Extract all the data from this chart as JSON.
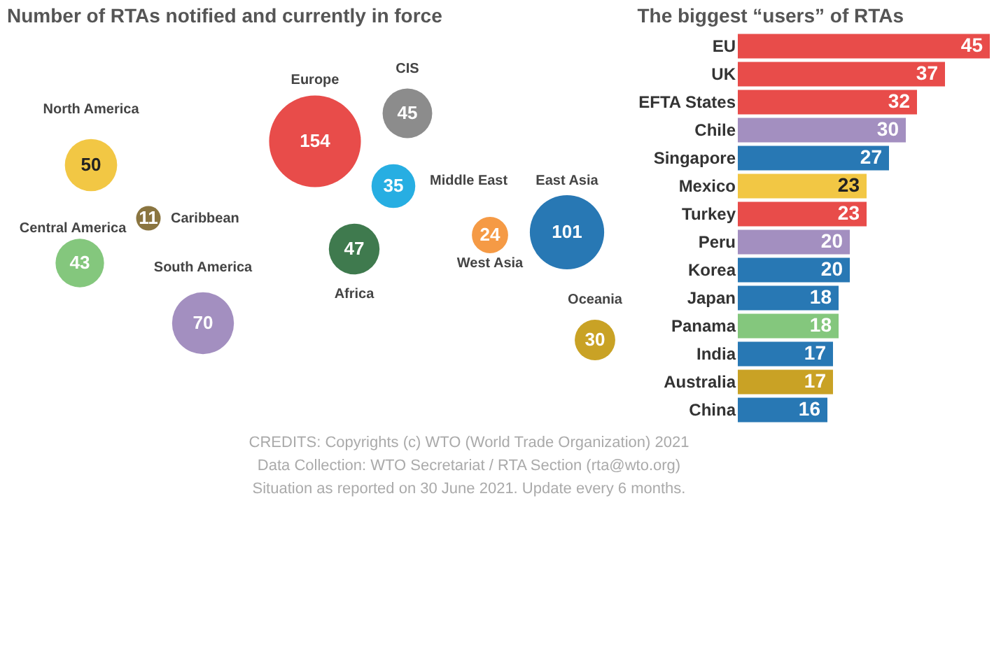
{
  "chart_data": [
    {
      "type": "other",
      "title": "Number of RTAs notified and currently in force",
      "categories": [
        "North America",
        "Caribbean",
        "Central America",
        "South America",
        "Europe",
        "CIS",
        "Middle East",
        "Africa",
        "West Asia",
        "East Asia",
        "Oceania"
      ],
      "values": [
        50,
        11,
        43,
        70,
        154,
        45,
        35,
        47,
        24,
        101,
        30
      ],
      "colors": [
        "#f2c744",
        "#8a7540",
        "#84c77d",
        "#a38fc0",
        "#e84c4a",
        "#8c8c8c",
        "#27aee2",
        "#3f7a4e",
        "#f59a45",
        "#2878b4",
        "#c9a225"
      ],
      "data_labels": true,
      "annotations": [
        "CREDITS: Copyrights (c) WTO (World Trade Organization) 2021",
        "Data Collection: WTO Secretariat / RTA Section (rta@wto.org)",
        "Situation as reported on 30 June 2021. Update every 6 months."
      ]
    },
    {
      "type": "bar",
      "orientation": "horizontal",
      "title": "The biggest “users” of RTAs",
      "categories": [
        "EU",
        "UK",
        "EFTA States",
        "Chile",
        "Singapore",
        "Mexico",
        "Turkey",
        "Peru",
        "Korea",
        "Japan",
        "Panama",
        "India",
        "Australia",
        "China"
      ],
      "values": [
        45,
        37,
        32,
        30,
        27,
        23,
        23,
        20,
        20,
        18,
        18,
        17,
        17,
        16
      ],
      "colors": [
        "#e84c4a",
        "#e84c4a",
        "#e84c4a",
        "#a38fc0",
        "#2878b4",
        "#f2c744",
        "#e84c4a",
        "#a38fc0",
        "#2878b4",
        "#2878b4",
        "#84c77d",
        "#2878b4",
        "#c9a225",
        "#2878b4"
      ],
      "data_labels": true,
      "tick_labels": "y"
    }
  ]
}
